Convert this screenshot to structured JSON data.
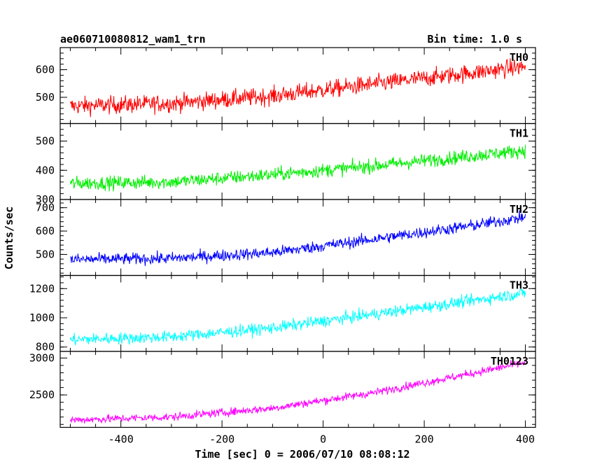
{
  "chart_data": {
    "type": "line",
    "title": "ae060710080812_wam1_trn",
    "bin_label": "Bin time: 1.0 s",
    "xlabel": "Time [sec] 0 = 2006/07/10 08:08:12",
    "ylabel": "Counts/sec",
    "xlim": [
      -520,
      420
    ],
    "xticks": [
      -400,
      -200,
      0,
      200,
      400
    ],
    "grid": false,
    "x_range_data": [
      -500,
      400
    ],
    "panels": [
      {
        "name": "TH0",
        "color": "#ff0000",
        "ylim": [
          405,
          680
        ],
        "yticks": [
          500,
          600
        ],
        "trend": [
          [
            -500,
            468
          ],
          [
            -300,
            478
          ],
          [
            -100,
            505
          ],
          [
            100,
            548
          ],
          [
            300,
            590
          ],
          [
            400,
            612
          ]
        ],
        "noise": 38
      },
      {
        "name": "TH1",
        "color": "#00ee00",
        "ylim": [
          300,
          560
        ],
        "yticks": [
          300,
          400,
          500
        ],
        "trend": [
          [
            -500,
            355
          ],
          [
            -300,
            360
          ],
          [
            -100,
            385
          ],
          [
            100,
            415
          ],
          [
            300,
            450
          ],
          [
            400,
            468
          ]
        ],
        "noise": 28
      },
      {
        "name": "TH2",
        "color": "#0000ff",
        "ylim": [
          410,
          735
        ],
        "yticks": [
          500,
          600,
          700
        ],
        "trend": [
          [
            -500,
            478
          ],
          [
            -300,
            483
          ],
          [
            -100,
            508
          ],
          [
            100,
            565
          ],
          [
            300,
            625
          ],
          [
            400,
            660
          ]
        ],
        "noise": 30
      },
      {
        "name": "TH3",
        "color": "#00ffff",
        "ylim": [
          770,
          1290
        ],
        "yticks": [
          800,
          1000,
          1200
        ],
        "trend": [
          [
            -500,
            850
          ],
          [
            -300,
            870
          ],
          [
            -100,
            930
          ],
          [
            100,
            1025
          ],
          [
            300,
            1120
          ],
          [
            400,
            1170
          ]
        ],
        "noise": 48
      },
      {
        "name": "TH0123",
        "color": "#ff00ff",
        "ylim": [
          2060,
          3090
        ],
        "yticks": [
          2500,
          3000
        ],
        "trend": [
          [
            -500,
            2160
          ],
          [
            -300,
            2200
          ],
          [
            -100,
            2320
          ],
          [
            100,
            2530
          ],
          [
            300,
            2800
          ],
          [
            400,
            2940
          ]
        ],
        "noise": 65
      }
    ]
  }
}
